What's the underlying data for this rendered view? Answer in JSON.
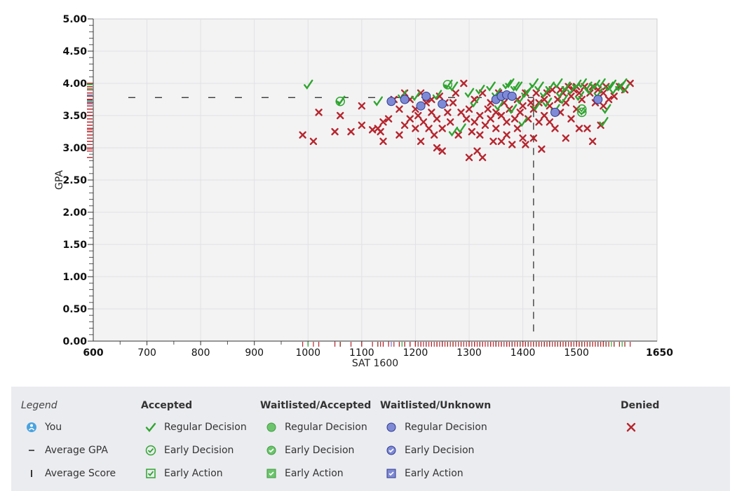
{
  "chart_data": {
    "type": "scatter",
    "title": "",
    "xlabel": "SAT 1600",
    "ylabel": "GPA",
    "xlim": [
      600,
      1650
    ],
    "ylim": [
      0,
      5
    ],
    "x_ticks": [
      600,
      700,
      800,
      900,
      1000,
      1100,
      1200,
      1300,
      1400,
      1500,
      1650
    ],
    "y_ticks": [
      "0.00",
      "0.50",
      "1.00",
      "1.50",
      "2.00",
      "2.50",
      "3.00",
      "3.50",
      "4.00",
      "4.50",
      "5.00"
    ],
    "grid": true,
    "average_gpa": 3.78,
    "average_score": 1420,
    "series": [
      {
        "name": "Accepted",
        "marker": "check",
        "color": "#2fa52f",
        "points": [
          [
            1000,
            3.98
          ],
          [
            1060,
            3.73
          ],
          [
            1130,
            3.72
          ],
          [
            1175,
            3.82
          ],
          [
            1200,
            3.8
          ],
          [
            1240,
            3.82
          ],
          [
            1260,
            3.98
          ],
          [
            1270,
            3.95
          ],
          [
            1270,
            3.25
          ],
          [
            1285,
            3.3
          ],
          [
            1300,
            3.85
          ],
          [
            1310,
            3.7
          ],
          [
            1320,
            3.9
          ],
          [
            1340,
            3.95
          ],
          [
            1350,
            3.85
          ],
          [
            1355,
            3.65
          ],
          [
            1370,
            3.98
          ],
          [
            1375,
            4.0
          ],
          [
            1380,
            3.6
          ],
          [
            1385,
            3.95
          ],
          [
            1390,
            3.95
          ],
          [
            1395,
            3.75
          ],
          [
            1400,
            3.4
          ],
          [
            1405,
            3.85
          ],
          [
            1410,
            3.9
          ],
          [
            1420,
            4.0
          ],
          [
            1425,
            3.65
          ],
          [
            1430,
            3.95
          ],
          [
            1440,
            3.85
          ],
          [
            1445,
            3.7
          ],
          [
            1450,
            3.95
          ],
          [
            1460,
            3.6
          ],
          [
            1465,
            4.0
          ],
          [
            1470,
            3.85
          ],
          [
            1475,
            3.75
          ],
          [
            1480,
            3.95
          ],
          [
            1490,
            3.9
          ],
          [
            1500,
            3.98
          ],
          [
            1505,
            3.8
          ],
          [
            1510,
            4.0
          ],
          [
            1520,
            3.95
          ],
          [
            1525,
            3.9
          ],
          [
            1535,
            3.98
          ],
          [
            1540,
            3.85
          ],
          [
            1545,
            4.0
          ],
          [
            1550,
            3.4
          ],
          [
            1555,
            3.6
          ],
          [
            1560,
            3.95
          ],
          [
            1565,
            3.98
          ],
          [
            1570,
            3.9
          ],
          [
            1580,
            3.95
          ],
          [
            1585,
            4.0
          ],
          [
            1590,
            3.92
          ]
        ]
      },
      {
        "name": "Accepted Early Decision",
        "marker": "check-circle",
        "color": "#2fa52f",
        "points": [
          [
            1060,
            3.72
          ],
          [
            1260,
            3.98
          ],
          [
            1510,
            3.6
          ],
          [
            1510,
            3.55
          ]
        ]
      },
      {
        "name": "Waitlisted/Unknown",
        "marker": "circle",
        "color": "#6b78c8",
        "points": [
          [
            1155,
            3.72
          ],
          [
            1180,
            3.75
          ],
          [
            1210,
            3.65
          ],
          [
            1220,
            3.8
          ],
          [
            1250,
            3.68
          ],
          [
            1350,
            3.75
          ],
          [
            1360,
            3.8
          ],
          [
            1370,
            3.82
          ],
          [
            1380,
            3.8
          ],
          [
            1460,
            3.55
          ],
          [
            1540,
            3.75
          ]
        ]
      },
      {
        "name": "Denied",
        "marker": "x",
        "color": "#b6262e",
        "points": [
          [
            990,
            3.2
          ],
          [
            1010,
            3.1
          ],
          [
            1020,
            3.55
          ],
          [
            1050,
            3.25
          ],
          [
            1060,
            3.5
          ],
          [
            1080,
            3.25
          ],
          [
            1100,
            3.65
          ],
          [
            1100,
            3.35
          ],
          [
            1120,
            3.28
          ],
          [
            1130,
            3.3
          ],
          [
            1135,
            3.25
          ],
          [
            1140,
            3.1
          ],
          [
            1140,
            3.4
          ],
          [
            1150,
            3.45
          ],
          [
            1160,
            3.75
          ],
          [
            1170,
            3.2
          ],
          [
            1170,
            3.6
          ],
          [
            1180,
            3.85
          ],
          [
            1180,
            3.35
          ],
          [
            1190,
            3.75
          ],
          [
            1190,
            3.45
          ],
          [
            1200,
            3.6
          ],
          [
            1200,
            3.3
          ],
          [
            1205,
            3.5
          ],
          [
            1210,
            3.1
          ],
          [
            1210,
            3.85
          ],
          [
            1215,
            3.4
          ],
          [
            1220,
            3.7
          ],
          [
            1225,
            3.3
          ],
          [
            1230,
            3.75
          ],
          [
            1230,
            3.55
          ],
          [
            1235,
            3.2
          ],
          [
            1240,
            3.0
          ],
          [
            1240,
            3.45
          ],
          [
            1245,
            3.8
          ],
          [
            1250,
            2.95
          ],
          [
            1250,
            3.3
          ],
          [
            1255,
            3.7
          ],
          [
            1260,
            3.55
          ],
          [
            1265,
            3.4
          ],
          [
            1270,
            3.7
          ],
          [
            1275,
            3.85
          ],
          [
            1280,
            3.2
          ],
          [
            1285,
            3.55
          ],
          [
            1290,
            4.0
          ],
          [
            1295,
            3.45
          ],
          [
            1300,
            2.85
          ],
          [
            1300,
            3.6
          ],
          [
            1305,
            3.25
          ],
          [
            1310,
            3.75
          ],
          [
            1310,
            3.4
          ],
          [
            1315,
            2.95
          ],
          [
            1320,
            3.5
          ],
          [
            1320,
            3.2
          ],
          [
            1325,
            2.85
          ],
          [
            1325,
            3.85
          ],
          [
            1330,
            3.35
          ],
          [
            1335,
            3.6
          ],
          [
            1340,
            3.45
          ],
          [
            1340,
            3.7
          ],
          [
            1345,
            3.1
          ],
          [
            1350,
            3.55
          ],
          [
            1350,
            3.3
          ],
          [
            1355,
            3.85
          ],
          [
            1360,
            3.1
          ],
          [
            1360,
            3.5
          ],
          [
            1365,
            3.7
          ],
          [
            1370,
            3.4
          ],
          [
            1370,
            3.2
          ],
          [
            1375,
            3.6
          ],
          [
            1380,
            3.05
          ],
          [
            1385,
            3.45
          ],
          [
            1390,
            3.75
          ],
          [
            1390,
            3.3
          ],
          [
            1395,
            3.55
          ],
          [
            1400,
            3.15
          ],
          [
            1400,
            3.65
          ],
          [
            1405,
            3.05
          ],
          [
            1405,
            3.85
          ],
          [
            1410,
            3.45
          ],
          [
            1415,
            3.7
          ],
          [
            1420,
            3.15
          ],
          [
            1420,
            3.6
          ],
          [
            1425,
            3.85
          ],
          [
            1430,
            3.4
          ],
          [
            1430,
            3.7
          ],
          [
            1435,
            2.98
          ],
          [
            1440,
            3.75
          ],
          [
            1440,
            3.5
          ],
          [
            1445,
            3.85
          ],
          [
            1450,
            3.4
          ],
          [
            1450,
            3.65
          ],
          [
            1455,
            3.9
          ],
          [
            1460,
            3.3
          ],
          [
            1465,
            3.75
          ],
          [
            1470,
            3.9
          ],
          [
            1470,
            3.55
          ],
          [
            1475,
            3.85
          ],
          [
            1480,
            3.15
          ],
          [
            1480,
            3.7
          ],
          [
            1485,
            3.95
          ],
          [
            1490,
            3.8
          ],
          [
            1490,
            3.45
          ],
          [
            1495,
            3.9
          ],
          [
            1500,
            3.6
          ],
          [
            1500,
            3.95
          ],
          [
            1505,
            3.3
          ],
          [
            1505,
            3.85
          ],
          [
            1510,
            3.75
          ],
          [
            1515,
            3.95
          ],
          [
            1520,
            3.3
          ],
          [
            1525,
            3.85
          ],
          [
            1530,
            3.1
          ],
          [
            1530,
            3.95
          ],
          [
            1535,
            3.7
          ],
          [
            1540,
            3.9
          ],
          [
            1545,
            3.35
          ],
          [
            1550,
            3.85
          ],
          [
            1550,
            3.65
          ],
          [
            1555,
            3.95
          ],
          [
            1560,
            3.75
          ],
          [
            1570,
            3.8
          ],
          [
            1580,
            3.95
          ],
          [
            1590,
            3.9
          ],
          [
            1600,
            4.0
          ]
        ]
      }
    ]
  },
  "legend": {
    "title": "Legend",
    "you": "You",
    "avg_gpa": "Average GPA",
    "avg_score": "Average Score",
    "col_accepted": "Accepted",
    "col_wl_accepted": "Waitlisted/Accepted",
    "col_wl_unknown": "Waitlisted/Unknown",
    "col_denied": "Denied",
    "regular": "Regular Decision",
    "early_decision": "Early Decision",
    "early_action": "Early Action",
    "colors": {
      "accepted": "#2fa52f",
      "waitlisted_accepted": "#4fbb4f",
      "waitlisted_unknown": "#6b78c8",
      "denied": "#b6262e",
      "you": "#4aa3df"
    }
  }
}
